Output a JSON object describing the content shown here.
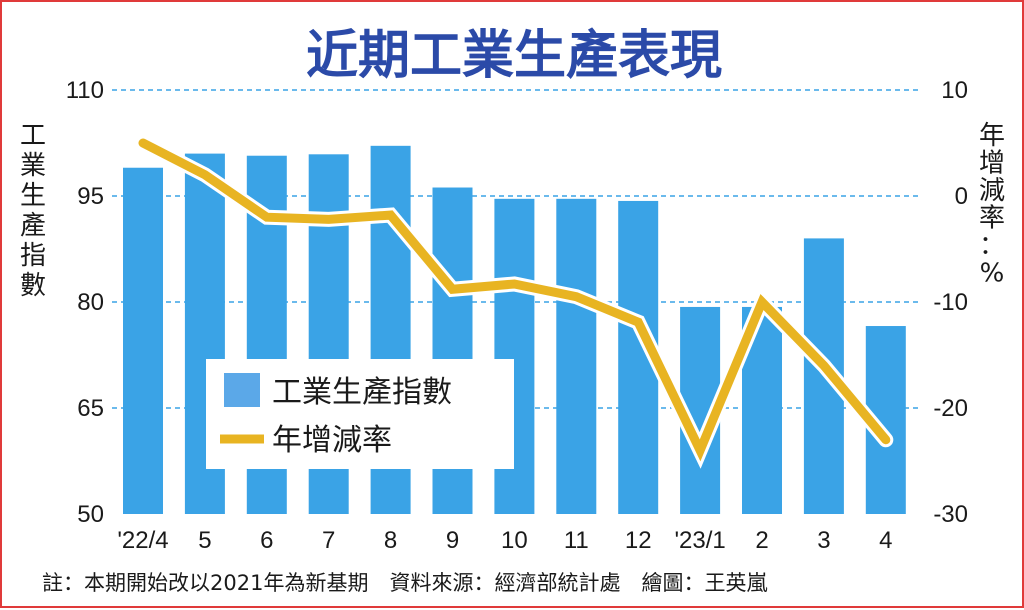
{
  "chart_data": {
    "type": "bar",
    "title": "近期工業生產表現",
    "categories": [
      "'22/4",
      "5",
      "6",
      "7",
      "8",
      "9",
      "10",
      "11",
      "12",
      "'23/1",
      "2",
      "3",
      "4"
    ],
    "series": [
      {
        "name": "工業生產指數",
        "type": "bar",
        "axis": "left",
        "color": "#3aa3e6",
        "values": [
          99.0,
          101.0,
          100.7,
          100.9,
          102.1,
          96.2,
          94.6,
          94.6,
          94.3,
          79.3,
          79.3,
          89.0,
          76.6
        ]
      },
      {
        "name": "年增減率",
        "type": "line",
        "axis": "right",
        "color": "#e8b422",
        "values": [
          5.0,
          2.0,
          -2.0,
          -2.2,
          -1.8,
          -8.8,
          -8.3,
          -9.5,
          -11.9,
          -24.0,
          -10.0,
          -16.0,
          -23.0
        ]
      }
    ],
    "y_left": {
      "label": "工業生產指數",
      "range": [
        50,
        110
      ],
      "ticks": [
        50,
        65,
        80,
        95,
        110
      ]
    },
    "y_right": {
      "label": "年增減率：%",
      "range": [
        -30,
        10
      ],
      "ticks": [
        -30,
        -20,
        -10,
        0,
        10
      ]
    },
    "grid": "horizontal-dashed",
    "legend_position": "bottom-left"
  },
  "footnote": "註：本期開始改以2021年為新基期　資料來源：經濟部統計處　繪圖：王英嵐"
}
